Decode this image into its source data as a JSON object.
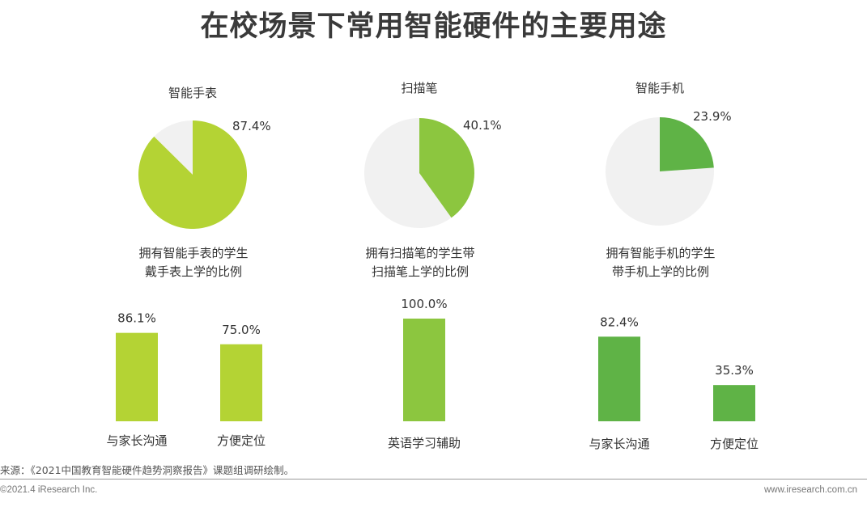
{
  "title": "在校场景下常用智能硬件的主要用途",
  "colors": {
    "device_watch": "#b4d334",
    "device_scanner": "#8cc63f",
    "device_phone": "#5fb346",
    "pie_remainder": "#f1f1f1"
  },
  "chart_data": [
    {
      "type": "pie",
      "title": "智能手表",
      "value_label": "87.4%",
      "values": [
        87.4,
        12.6
      ],
      "caption": [
        "拥有智能手表的学生",
        "戴手表上学的比例"
      ]
    },
    {
      "type": "pie",
      "title": "扫描笔",
      "value_label": "40.1%",
      "values": [
        40.1,
        59.9
      ],
      "caption": [
        "拥有扫描笔的学生带",
        "扫描笔上学的比例"
      ]
    },
    {
      "type": "pie",
      "title": "智能手机",
      "value_label": "23.9%",
      "values": [
        23.9,
        76.1
      ],
      "caption": [
        "拥有智能手机的学生",
        "带手机上学的比例"
      ]
    },
    {
      "type": "bar",
      "categories": [
        "与家长沟通",
        "方便定位"
      ],
      "values": [
        86.1,
        75.0
      ],
      "value_labels": [
        "86.1%",
        "75.0%"
      ]
    },
    {
      "type": "bar",
      "categories": [
        "英语学习辅助"
      ],
      "values": [
        100.0
      ],
      "value_labels": [
        "100.0%"
      ]
    },
    {
      "type": "bar",
      "categories": [
        "与家长沟通",
        "方便定位"
      ],
      "values": [
        82.4,
        35.3
      ],
      "value_labels": [
        "82.4%",
        "35.3%"
      ]
    }
  ],
  "source": "来源：《2021中国教育智能硬件趋势洞察报告》课题组调研绘制。",
  "copyright": "©2021.4 iResearch Inc.",
  "website": "www.iresearch.com.cn"
}
